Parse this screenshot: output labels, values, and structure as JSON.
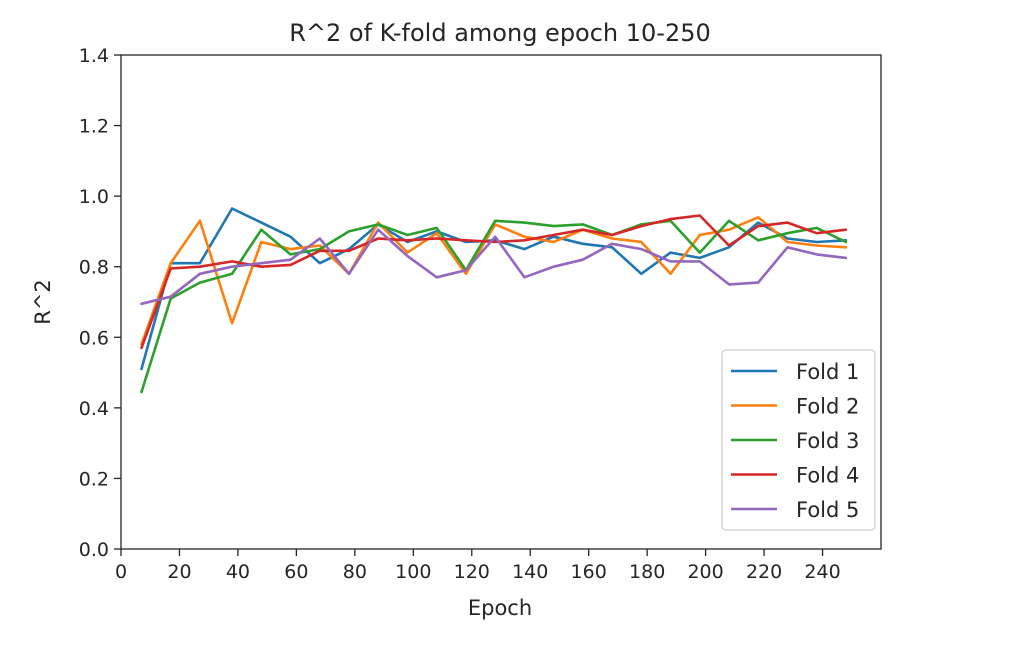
{
  "chart_data": {
    "type": "line",
    "title": "R^2 of K-fold among epoch 10-250",
    "xlabel": "Epoch",
    "ylabel": "R^2",
    "xlim": [
      0,
      260
    ],
    "ylim": [
      0,
      1.4
    ],
    "x_ticks": [
      0,
      20,
      40,
      60,
      80,
      100,
      120,
      140,
      160,
      180,
      200,
      220,
      240
    ],
    "y_ticks": [
      0.0,
      0.2,
      0.4,
      0.6,
      0.8,
      1.0,
      1.2,
      1.4
    ],
    "x_tick_labels": [
      "0",
      "20",
      "40",
      "60",
      "80",
      "100",
      "120",
      "140",
      "160",
      "180",
      "200",
      "220",
      "240"
    ],
    "y_tick_labels": [
      "0.0",
      "0.2",
      "0.4",
      "0.6",
      "0.8",
      "1.0",
      "1.2",
      "1.4"
    ],
    "grid": false,
    "legend_position": "lower-right",
    "x": [
      7,
      17,
      27,
      38,
      48,
      58,
      68,
      78,
      88,
      98,
      108,
      118,
      128,
      138,
      148,
      158,
      168,
      178,
      188,
      198,
      208,
      218,
      228,
      238,
      248
    ],
    "series": [
      {
        "name": "Fold 1",
        "color": "#1f77b4",
        "values": [
          0.51,
          0.81,
          0.81,
          0.965,
          0.925,
          0.885,
          0.81,
          0.85,
          0.92,
          0.87,
          0.9,
          0.87,
          0.875,
          0.85,
          0.885,
          0.865,
          0.855,
          0.78,
          0.84,
          0.825,
          0.855,
          0.925,
          0.88,
          0.87,
          0.875
        ]
      },
      {
        "name": "Fold 2",
        "color": "#ff7f0e",
        "values": [
          0.58,
          0.81,
          0.93,
          0.64,
          0.87,
          0.85,
          0.86,
          0.78,
          0.925,
          0.84,
          0.895,
          0.78,
          0.92,
          0.885,
          0.87,
          0.905,
          0.88,
          0.87,
          0.78,
          0.89,
          0.905,
          0.94,
          0.87,
          0.86,
          0.855
        ]
      },
      {
        "name": "Fold 3",
        "color": "#2ca02c",
        "values": [
          0.445,
          0.71,
          0.755,
          0.78,
          0.905,
          0.835,
          0.85,
          0.9,
          0.92,
          0.89,
          0.91,
          0.79,
          0.93,
          0.925,
          0.915,
          0.92,
          0.89,
          0.92,
          0.93,
          0.84,
          0.93,
          0.875,
          0.895,
          0.91,
          0.87
        ]
      },
      {
        "name": "Fold 4",
        "color": "#d62728",
        "values": [
          0.57,
          0.795,
          0.8,
          0.815,
          0.8,
          0.805,
          0.845,
          0.845,
          0.88,
          0.875,
          0.88,
          0.875,
          0.87,
          0.875,
          0.89,
          0.905,
          0.89,
          0.915,
          0.935,
          0.945,
          0.86,
          0.915,
          0.925,
          0.895,
          0.905
        ]
      },
      {
        "name": "Fold 5",
        "color": "#9467bd",
        "values": [
          0.695,
          0.715,
          0.78,
          0.8,
          0.81,
          0.82,
          0.88,
          0.78,
          0.905,
          0.83,
          0.77,
          0.79,
          0.885,
          0.77,
          0.8,
          0.82,
          0.865,
          0.85,
          0.815,
          0.815,
          0.75,
          0.755,
          0.855,
          0.835,
          0.825
        ]
      }
    ]
  }
}
